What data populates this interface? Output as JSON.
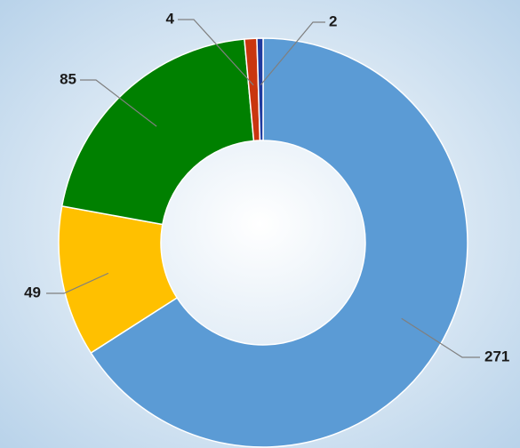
{
  "chart_data": {
    "type": "donut",
    "series": [
      {
        "values": [
          271,
          49,
          85,
          4,
          2
        ],
        "colors": [
          "#5b9bd5",
          "#ffc000",
          "#008000",
          "#c9360f",
          "#1f3a9e"
        ]
      }
    ]
  }
}
